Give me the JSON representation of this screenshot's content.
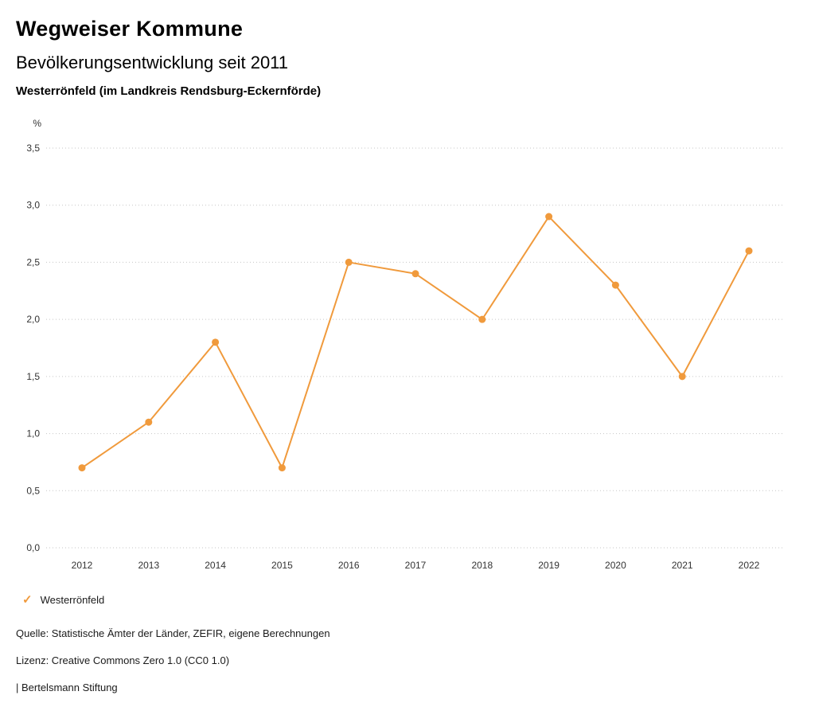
{
  "header": {
    "title": "Wegweiser Kommune",
    "subtitle": "Bevölkerungsentwicklung seit 2011",
    "location": "Westerrönfeld (im Landkreis Rendsburg-Eckernförde)"
  },
  "chart_data": {
    "type": "line",
    "title": "Bevölkerungsentwicklung seit 2011",
    "x": [
      "2012",
      "2013",
      "2014",
      "2015",
      "2016",
      "2017",
      "2018",
      "2019",
      "2020",
      "2021",
      "2022"
    ],
    "series": [
      {
        "name": "Westerrönfeld",
        "values": [
          0.7,
          1.1,
          1.8,
          0.7,
          2.5,
          2.4,
          2.0,
          2.9,
          2.3,
          1.5,
          2.6
        ],
        "color": "#F09A3C"
      }
    ],
    "xlabel": "",
    "ylabel": "%",
    "ylim": [
      0,
      3.5
    ],
    "ytick_step": 0.5,
    "ytick_labels": [
      "0,0",
      "0,5",
      "1,0",
      "1,5",
      "2,0",
      "2,5",
      "3,0",
      "3,5"
    ],
    "grid": "horizontal-dotted",
    "legend_position": "bottom-left"
  },
  "legend": {
    "marker": "✓",
    "items": [
      {
        "label": "Westerrönfeld",
        "color": "#F09A3C"
      }
    ]
  },
  "footer": {
    "source": "Quelle: Statistische Ämter der Länder, ZEFIR, eigene Berechnungen",
    "license": "Lizenz: Creative Commons Zero 1.0 (CC0 1.0)",
    "brand": "| Bertelsmann Stiftung"
  },
  "colors": {
    "accent": "#F09A3C",
    "grid": "#c6c6c6",
    "axis_text": "#333333"
  }
}
